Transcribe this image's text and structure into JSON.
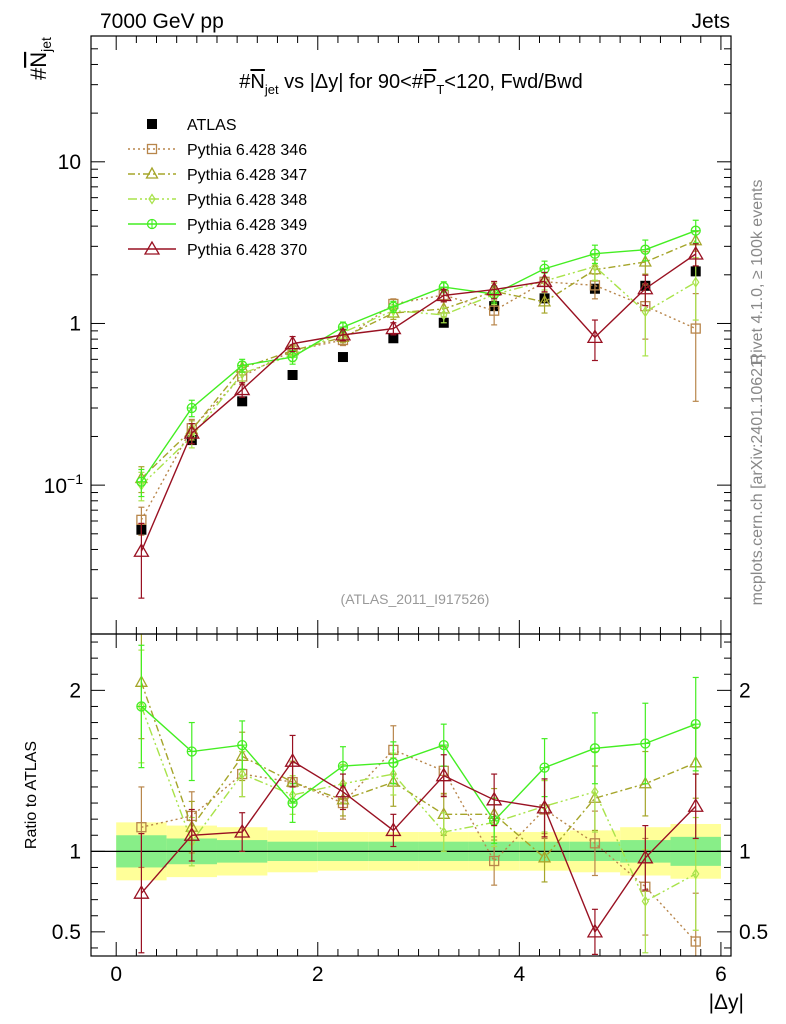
{
  "header": {
    "left": "7000 GeV pp",
    "right": "Jets"
  },
  "side_labels": {
    "rivet": "Rivet 4.1.0, ≥ 100k events",
    "mcplots": "mcplots.cern.ch [arXiv:2401.10621]"
  },
  "chart_data": [
    {
      "type": "line",
      "panel": "main",
      "title": {
        "prefix": "#",
        "n": "N",
        "n_sub": "jet",
        "mid": " vs |Δy| for 90<#",
        "p": "P",
        "p_sub": "T",
        "suffix": "<120, Fwd/Bwd"
      },
      "ylabel": {
        "prefix": "#",
        "n": "N",
        "n_sub": "jet"
      },
      "yscale": "log",
      "ylim": [
        0.012,
        60
      ],
      "xlim": [
        -0.25,
        6.1
      ],
      "yticks": [
        {
          "value": 0.1,
          "base": "10",
          "exp": "−1"
        },
        {
          "value": 1,
          "label": "1"
        },
        {
          "value": 10,
          "label": "10"
        }
      ],
      "annotation": "(ATLAS_2011_I917526)",
      "x": [
        0.25,
        0.75,
        1.25,
        1.75,
        2.25,
        2.75,
        3.25,
        3.75,
        4.25,
        4.75,
        5.25,
        5.75
      ],
      "series": [
        {
          "name": "ATLAS",
          "color": "#000000",
          "marker": "filled-square",
          "values": [
            0.053,
            0.19,
            0.33,
            0.48,
            0.62,
            0.81,
            1.01,
            1.28,
            1.43,
            1.64,
            1.71,
            2.1
          ]
        },
        {
          "name": "Pythia 6.428 346",
          "color": "#b8864b",
          "marker": "open-square",
          "dash": "2,3",
          "values": [
            0.061,
            0.225,
            0.47,
            0.68,
            0.79,
            1.32,
            1.5,
            1.2,
            1.81,
            1.72,
            1.28,
            0.93
          ],
          "errors": [
            0.012,
            0.03,
            0.05,
            0.06,
            0.06,
            0.1,
            0.13,
            0.22,
            0.25,
            0.3,
            0.48,
            0.6
          ]
        },
        {
          "name": "Pythia 6.428 347",
          "color": "#a5a52a",
          "marker": "open-triangle",
          "dash": "7,3,2,3",
          "values": [
            0.11,
            0.22,
            0.53,
            0.68,
            0.82,
            1.16,
            1.23,
            1.58,
            1.36,
            2.15,
            2.4,
            3.25
          ],
          "errors": [
            0.02,
            0.03,
            0.05,
            0.06,
            0.06,
            0.1,
            0.13,
            0.2,
            0.2,
            0.32,
            0.38,
            0.45
          ]
        },
        {
          "name": "Pythia 6.428 348",
          "color": "#a8e34a",
          "marker": "open-diamond",
          "dash": "9,3,2,3,2,3",
          "values": [
            0.1,
            0.2,
            0.49,
            0.64,
            0.88,
            1.2,
            1.13,
            1.51,
            1.83,
            2.25,
            1.18,
            1.8
          ],
          "errors": [
            0.02,
            0.03,
            0.05,
            0.06,
            0.07,
            0.1,
            0.12,
            0.2,
            0.22,
            0.4,
            0.55,
            0.75
          ]
        },
        {
          "name": "Pythia 6.428 349",
          "color": "#44ee22",
          "marker": "open-circle-cross",
          "dash": "",
          "values": [
            0.105,
            0.3,
            0.55,
            0.62,
            0.95,
            1.27,
            1.68,
            1.52,
            2.18,
            2.7,
            2.86,
            3.75
          ],
          "errors": [
            0.02,
            0.035,
            0.05,
            0.06,
            0.07,
            0.1,
            0.13,
            0.18,
            0.25,
            0.35,
            0.42,
            0.6
          ]
        },
        {
          "name": "Pythia 6.428 370",
          "color": "#991122",
          "marker": "open-triangle-large",
          "dash": "",
          "values": [
            0.039,
            0.21,
            0.39,
            0.75,
            0.85,
            0.93,
            1.49,
            1.62,
            1.82,
            0.82,
            1.64,
            2.69
          ],
          "errors": [
            0.019,
            0.03,
            0.04,
            0.08,
            0.07,
            0.08,
            0.13,
            0.2,
            0.25,
            0.23,
            0.35,
            0.42
          ]
        }
      ]
    },
    {
      "type": "line",
      "panel": "ratio",
      "ylabel": "Ratio to ATLAS",
      "ylim": [
        0.35,
        2.35
      ],
      "xlabel": "|Δy|",
      "xlim": [
        -0.25,
        6.1
      ],
      "xticks": [
        "0",
        "2",
        "4",
        "6"
      ],
      "yticks": [
        "0.5",
        "1",
        "2"
      ],
      "ytick_values": [
        0.5,
        1,
        2
      ],
      "bands": {
        "x_edges": [
          0,
          0.5,
          1.0,
          1.5,
          2.0,
          2.5,
          3.0,
          3.5,
          4.0,
          4.5,
          5.0,
          5.5,
          6.0
        ],
        "inner": [
          0.1,
          0.08,
          0.07,
          0.06,
          0.06,
          0.06,
          0.06,
          0.06,
          0.06,
          0.06,
          0.07,
          0.09
        ],
        "outer": [
          0.18,
          0.16,
          0.15,
          0.13,
          0.12,
          0.12,
          0.12,
          0.12,
          0.12,
          0.13,
          0.15,
          0.17
        ],
        "inner_color": "#88ee88",
        "outer_color": "#ffff99"
      },
      "series": [
        {
          "name": "Pythia 6.428 346",
          "values": [
            1.15,
            1.22,
            1.48,
            1.43,
            1.3,
            1.63,
            1.5,
            0.94,
            1.26,
            1.05,
            0.78,
            0.44
          ],
          "errors": [
            0.25,
            0.15,
            0.14,
            0.12,
            0.1,
            0.15,
            0.15,
            0.15,
            0.18,
            0.2,
            0.3,
            0.3
          ]
        },
        {
          "name": "Pythia 6.428 347",
          "values": [
            2.05,
            1.15,
            1.59,
            1.43,
            1.32,
            1.43,
            1.23,
            1.23,
            0.96,
            1.33,
            1.42,
            1.55
          ],
          "errors": [
            0.35,
            0.16,
            0.15,
            0.13,
            0.1,
            0.15,
            0.13,
            0.16,
            0.15,
            0.2,
            0.2,
            0.22
          ]
        },
        {
          "name": "Pythia 6.428 348",
          "values": [
            1.9,
            1.06,
            1.48,
            1.35,
            1.42,
            1.48,
            1.12,
            1.18,
            1.28,
            1.37,
            0.69,
            0.86
          ],
          "errors": [
            0.35,
            0.15,
            0.14,
            0.12,
            0.12,
            0.13,
            0.12,
            0.15,
            0.16,
            0.25,
            0.32,
            0.35
          ]
        },
        {
          "name": "Pythia 6.428 349",
          "values": [
            1.9,
            1.62,
            1.66,
            1.3,
            1.53,
            1.55,
            1.66,
            1.19,
            1.52,
            1.64,
            1.67,
            1.79
          ],
          "errors": [
            0.38,
            0.18,
            0.15,
            0.12,
            0.12,
            0.13,
            0.13,
            0.14,
            0.18,
            0.22,
            0.25,
            0.29
          ]
        },
        {
          "name": "Pythia 6.428 370",
          "values": [
            0.74,
            1.1,
            1.12,
            1.56,
            1.37,
            1.13,
            1.47,
            1.32,
            1.27,
            0.5,
            0.96,
            1.28
          ],
          "errors": [
            0.37,
            0.16,
            0.12,
            0.16,
            0.11,
            0.1,
            0.13,
            0.16,
            0.18,
            0.14,
            0.2,
            0.2
          ]
        }
      ]
    }
  ]
}
